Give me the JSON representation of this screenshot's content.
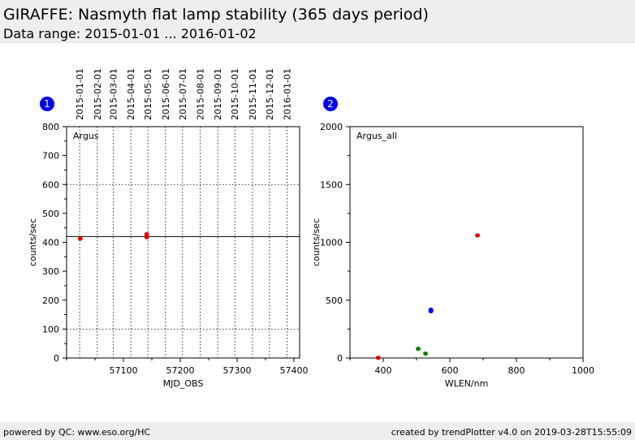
{
  "header": {
    "title": "GIRAFFE: Nasmyth flat lamp stability (365 days period)",
    "subtitle": "Data range: 2015-01-01 ... 2016-01-02"
  },
  "footer": {
    "left": "powered by QC: www.eso.org/HC",
    "right": "created by trendPlotter v4.0 on 2019-03-28T15:55:09"
  },
  "chart_data": [
    {
      "type": "scatter",
      "panel_number": "1",
      "label": "Argus",
      "xlabel": "MJD_OBS",
      "ylabel": "counts/sec",
      "xlim": [
        57000,
        57410
      ],
      "ylim": [
        0,
        800
      ],
      "xticks": [
        57100,
        57200,
        57300,
        57400
      ],
      "yticks": [
        0,
        100,
        200,
        300,
        400,
        500,
        600,
        700,
        800
      ],
      "reference_lines": [
        {
          "y": 420,
          "style": "solid"
        },
        {
          "y": 600,
          "style": "dotted"
        },
        {
          "y": 100,
          "style": "dotted"
        }
      ],
      "date_ticks": [
        {
          "mjd": 57023,
          "label": "2015-01-01"
        },
        {
          "mjd": 57054,
          "label": "2015-02-01"
        },
        {
          "mjd": 57082,
          "label": "2015-03-01"
        },
        {
          "mjd": 57113,
          "label": "2015-04-01"
        },
        {
          "mjd": 57143,
          "label": "2015-05-01"
        },
        {
          "mjd": 57174,
          "label": "2015-06-01"
        },
        {
          "mjd": 57204,
          "label": "2015-07-01"
        },
        {
          "mjd": 57235,
          "label": "2015-08-01"
        },
        {
          "mjd": 57266,
          "label": "2015-09-01"
        },
        {
          "mjd": 57296,
          "label": "2015-10-01"
        },
        {
          "mjd": 57327,
          "label": "2015-11-01"
        },
        {
          "mjd": 57357,
          "label": "2015-12-01"
        },
        {
          "mjd": 57388,
          "label": "2016-01-01"
        }
      ],
      "points": [
        {
          "x": 57024,
          "y": 413,
          "color": "#e00000"
        },
        {
          "x": 57141,
          "y": 428,
          "color": "#e00000"
        },
        {
          "x": 57141,
          "y": 418,
          "color": "#e00000"
        }
      ]
    },
    {
      "type": "scatter",
      "panel_number": "2",
      "label": "Argus_all",
      "xlabel": "WLEN/nm",
      "ylabel": "counts/sec",
      "xlim": [
        300,
        1000
      ],
      "ylim": [
        0,
        2000
      ],
      "xticks": [
        400,
        600,
        800,
        1000
      ],
      "yticks": [
        0,
        500,
        1000,
        1500,
        2000
      ],
      "points": [
        {
          "x": 683,
          "y": 1060,
          "color": "#e00000"
        },
        {
          "x": 385,
          "y": 2,
          "color": "#e00000"
        },
        {
          "x": 543,
          "y": 418,
          "color": "#0000ee"
        },
        {
          "x": 543,
          "y": 405,
          "color": "#0000ee"
        },
        {
          "x": 505,
          "y": 80,
          "color": "#008000"
        },
        {
          "x": 527,
          "y": 38,
          "color": "#008000"
        }
      ]
    }
  ]
}
